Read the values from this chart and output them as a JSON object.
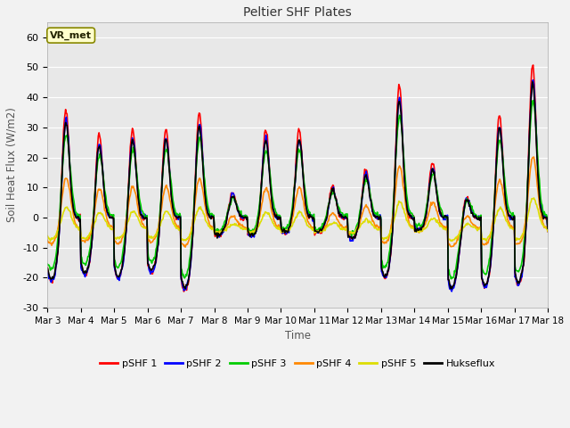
{
  "title": "Peltier SHF Plates",
  "xlabel": "Time",
  "ylabel": "Soil Heat Flux (W/m2)",
  "ylim": [
    -30,
    65
  ],
  "xlim": [
    0,
    360
  ],
  "background_color": "#f2f2f2",
  "plot_bg_color": "#e8e8e8",
  "series_colors": [
    "#ff0000",
    "#0000ff",
    "#00cc00",
    "#ff8800",
    "#dddd00",
    "#000000"
  ],
  "series_labels": [
    "pSHF 1",
    "pSHF 2",
    "pSHF 3",
    "pSHF 4",
    "pSHF 5",
    "Hukseflux"
  ],
  "series_lw": [
    1.2,
    1.2,
    1.2,
    1.2,
    1.2,
    1.2
  ],
  "xtick_labels": [
    "Mar 3",
    "Mar 4",
    "Mar 5",
    "Mar 6",
    "Mar 7",
    "Mar 8",
    "Mar 9",
    "Mar 10",
    "Mar 11",
    "Mar 12",
    "Mar 13",
    "Mar 14",
    "Mar 15",
    "Mar 16",
    "Mar 17",
    "Mar 18"
  ],
  "xtick_positions": [
    0,
    24,
    48,
    72,
    96,
    120,
    144,
    168,
    192,
    216,
    240,
    264,
    288,
    312,
    336,
    360
  ],
  "ytick_positions": [
    -30,
    -20,
    -10,
    0,
    10,
    20,
    30,
    40,
    50,
    60
  ],
  "grid_color": "#ffffff",
  "n_points": 720,
  "day_peak_amplitudes": [
    39,
    30,
    32,
    32,
    38,
    9,
    30,
    30,
    11,
    17,
    47,
    19,
    10,
    37,
    54,
    10
  ],
  "day_neg_amplitudes": [
    21,
    19,
    20,
    18,
    24,
    6,
    6,
    5,
    5,
    7,
    20,
    4,
    24,
    23,
    22,
    5
  ]
}
